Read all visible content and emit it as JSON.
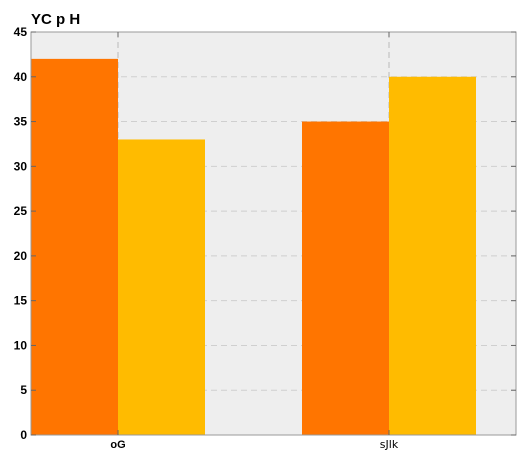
{
  "chart_data": {
    "type": "bar",
    "title": "YC p H",
    "categories": [
      "oG",
      "sJlk"
    ],
    "series": [
      {
        "values": [
          42,
          35
        ],
        "color": "#ff7500"
      },
      {
        "values": [
          33,
          40
        ],
        "color": "#ffbb00"
      }
    ],
    "ylim": [
      0,
      45
    ],
    "yticks": [
      "0",
      "5",
      "10",
      "15",
      "20",
      "25",
      "30",
      "35",
      "40",
      "45"
    ],
    "grid": true,
    "background": "#eeeeee"
  }
}
